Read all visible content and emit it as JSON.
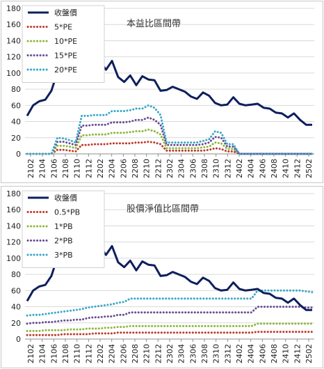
{
  "chart_data": [
    {
      "type": "line",
      "title": "本益比區間帶",
      "ylim": [
        0,
        180
      ],
      "yticks": [
        "0",
        "20",
        "40",
        "60",
        "80",
        "100",
        "120",
        "140",
        "160",
        "180"
      ],
      "xticks": [
        "2102",
        "2104",
        "2106",
        "2108",
        "2110",
        "2112",
        "2202",
        "2204",
        "2206",
        "2208",
        "2210",
        "2212",
        "2302",
        "2304",
        "2306",
        "2308",
        "2310",
        "2312",
        "2402",
        "2404",
        "2406",
        "2408",
        "2410",
        "2412",
        "2502"
      ],
      "legend_position": "top-left",
      "grid": "horizontal",
      "series": [
        {
          "name": "收盤價",
          "color": "#0d1f5c",
          "style": "solid",
          "values": [
            47,
            60,
            65,
            67,
            78,
            101,
            108,
            106,
            108,
            133,
            106,
            126,
            115,
            104,
            115,
            95,
            89,
            97,
            85,
            96,
            92,
            91,
            78,
            79,
            83,
            80,
            77,
            71,
            68,
            76,
            72,
            63,
            60,
            61,
            70,
            62,
            60,
            61,
            62,
            57,
            56,
            51,
            50,
            45,
            50,
            42,
            36,
            36
          ]
        },
        {
          "name": "5*PE",
          "color": "#c0392b",
          "style": "dotted",
          "values": [
            0,
            0,
            0,
            0,
            0,
            5,
            5,
            4,
            3,
            11,
            11,
            12,
            12,
            12,
            13,
            13,
            13,
            13,
            14,
            14,
            15,
            14,
            12,
            4,
            4,
            4,
            4,
            4,
            4,
            4,
            5,
            7,
            6,
            3,
            3,
            0,
            0,
            0,
            0,
            0,
            0,
            0,
            0,
            0,
            0,
            0,
            0,
            0
          ]
        },
        {
          "name": "10*PE",
          "color": "#8db83a",
          "style": "dotted",
          "values": [
            0,
            0,
            0,
            0,
            0,
            10,
            10,
            9,
            7,
            23,
            23,
            24,
            24,
            24,
            26,
            26,
            26,
            27,
            28,
            28,
            30,
            28,
            24,
            7,
            7,
            7,
            7,
            7,
            7,
            8,
            9,
            14,
            13,
            6,
            6,
            0,
            0,
            0,
            0,
            0,
            0,
            0,
            0,
            0,
            0,
            0,
            0,
            0
          ]
        },
        {
          "name": "15*PE",
          "color": "#6a4c93",
          "style": "dotted",
          "values": [
            0,
            0,
            0,
            0,
            0,
            15,
            15,
            13,
            11,
            35,
            35,
            36,
            36,
            36,
            39,
            39,
            39,
            40,
            42,
            42,
            45,
            42,
            36,
            11,
            11,
            11,
            11,
            11,
            11,
            12,
            14,
            21,
            20,
            9,
            9,
            0,
            0,
            0,
            0,
            0,
            0,
            0,
            0,
            0,
            0,
            0,
            0,
            0
          ]
        },
        {
          "name": "20*PE",
          "color": "#3aa6c9",
          "style": "dotted",
          "values": [
            0,
            0,
            0,
            0,
            0,
            20,
            19,
            17,
            14,
            47,
            47,
            48,
            48,
            48,
            53,
            53,
            53,
            54,
            56,
            56,
            60,
            57,
            48,
            14,
            14,
            14,
            14,
            14,
            14,
            16,
            18,
            28,
            26,
            12,
            12,
            0,
            0,
            0,
            0,
            0,
            0,
            0,
            0,
            0,
            0,
            0,
            0,
            0
          ]
        }
      ]
    },
    {
      "type": "line",
      "title": "股價淨值比區間帶",
      "ylim": [
        0,
        180
      ],
      "yticks": [
        "0",
        "20",
        "40",
        "60",
        "80",
        "100",
        "120",
        "140",
        "160",
        "180"
      ],
      "xticks": [
        "2102",
        "2104",
        "2106",
        "2108",
        "2110",
        "2112",
        "2202",
        "2204",
        "2206",
        "2208",
        "2210",
        "2212",
        "2302",
        "2304",
        "2306",
        "2308",
        "2310",
        "2312",
        "2402",
        "2404",
        "2406",
        "2408",
        "2410",
        "2412",
        "2502"
      ],
      "legend_position": "top-left",
      "grid": "horizontal",
      "series": [
        {
          "name": "收盤價",
          "color": "#0d1f5c",
          "style": "solid",
          "values": [
            47,
            60,
            65,
            67,
            78,
            101,
            108,
            106,
            108,
            107,
            108,
            126,
            115,
            104,
            115,
            95,
            89,
            97,
            85,
            96,
            92,
            91,
            78,
            79,
            83,
            80,
            77,
            71,
            68,
            76,
            72,
            63,
            60,
            61,
            70,
            62,
            60,
            61,
            62,
            57,
            56,
            51,
            50,
            45,
            50,
            42,
            36,
            36
          ]
        },
        {
          "name": "0.5*PB",
          "color": "#c0392b",
          "style": "dotted",
          "values": [
            5,
            5,
            5,
            5,
            5,
            5,
            6,
            6,
            6,
            6,
            6,
            7,
            7,
            7,
            7,
            8,
            8,
            8,
            8,
            8,
            8,
            8,
            8,
            8,
            8,
            8,
            8,
            8,
            8,
            8,
            8,
            8,
            8,
            8,
            8,
            8,
            8,
            8,
            9,
            9,
            9,
            9,
            9,
            9,
            9,
            9,
            9,
            9
          ]
        },
        {
          "name": "1*PB",
          "color": "#8db83a",
          "style": "dotted",
          "values": [
            10,
            10,
            10,
            11,
            11,
            11,
            11,
            12,
            12,
            12,
            13,
            13,
            13,
            14,
            14,
            15,
            15,
            16,
            16,
            16,
            16,
            16,
            16,
            16,
            16,
            16,
            16,
            16,
            16,
            16,
            16,
            16,
            16,
            16,
            16,
            16,
            16,
            16,
            19,
            19,
            19,
            19,
            19,
            19,
            19,
            19,
            19,
            19
          ]
        },
        {
          "name": "2*PB",
          "color": "#6a4c93",
          "style": "dotted",
          "values": [
            19,
            20,
            20,
            21,
            21,
            22,
            23,
            23,
            24,
            24,
            26,
            27,
            27,
            28,
            28,
            30,
            30,
            33,
            33,
            33,
            33,
            33,
            33,
            33,
            33,
            33,
            33,
            33,
            33,
            33,
            33,
            33,
            33,
            33,
            33,
            33,
            33,
            33,
            40,
            40,
            40,
            40,
            40,
            40,
            40,
            40,
            39,
            39
          ]
        },
        {
          "name": "3*PB",
          "color": "#3aa6c9",
          "style": "dotted",
          "values": [
            29,
            30,
            30,
            31,
            32,
            33,
            34,
            35,
            36,
            37,
            39,
            40,
            41,
            42,
            43,
            45,
            46,
            50,
            50,
            50,
            50,
            50,
            50,
            50,
            50,
            50,
            50,
            50,
            50,
            50,
            50,
            50,
            50,
            50,
            50,
            50,
            50,
            50,
            60,
            60,
            60,
            60,
            60,
            60,
            60,
            60,
            59,
            58
          ]
        }
      ]
    }
  ]
}
